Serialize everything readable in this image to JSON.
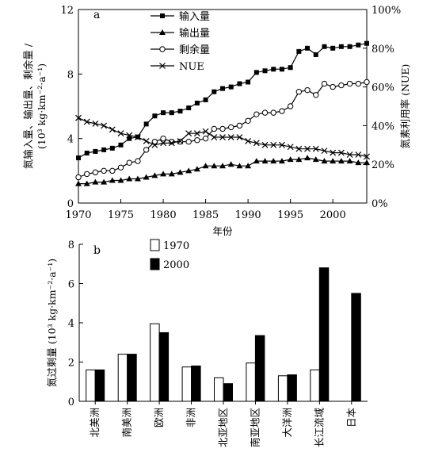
{
  "chart_data": [
    {
      "type": "line",
      "panel_label": "a",
      "xlabel": "年份",
      "ylabel_left_line1": "氮输入量、输出量、剩余量 /",
      "ylabel_left_line2": "(10³ kg·km⁻²·a⁻¹)",
      "ylabel_right": "氮素利用率 (NUE)",
      "xlim": [
        1970,
        2004
      ],
      "ylim_left": [
        0,
        12
      ],
      "ylim_right": [
        0,
        100
      ],
      "x_ticks": [
        1970,
        1975,
        1980,
        1985,
        1990,
        1995,
        2000
      ],
      "y_ticks_left": [
        "0",
        "4",
        "8",
        "12"
      ],
      "y_ticks_right": [
        "0%",
        "20%",
        "40%",
        "60%",
        "80%",
        "100%"
      ],
      "x": [
        1970,
        1971,
        1972,
        1973,
        1974,
        1975,
        1976,
        1977,
        1978,
        1979,
        1980,
        1981,
        1982,
        1983,
        1984,
        1985,
        1986,
        1987,
        1988,
        1989,
        1990,
        1991,
        1992,
        1993,
        1994,
        1995,
        1996,
        1997,
        1998,
        1999,
        2000,
        2001,
        2002,
        2003,
        2004
      ],
      "series": [
        {
          "name": "输入量",
          "axis": "left",
          "marker": "square",
          "values": [
            2.8,
            3.1,
            3.2,
            3.3,
            3.4,
            3.6,
            4.0,
            4.1,
            4.9,
            5.4,
            5.6,
            5.6,
            5.7,
            5.9,
            6.2,
            6.4,
            6.9,
            7.1,
            7.2,
            7.4,
            7.5,
            8.1,
            8.2,
            8.3,
            8.3,
            8.4,
            9.4,
            9.6,
            9.2,
            9.7,
            9.6,
            9.7,
            9.7,
            9.8,
            9.9
          ]
        },
        {
          "name": "输出量",
          "axis": "left",
          "marker": "triangle",
          "values": [
            1.2,
            1.2,
            1.3,
            1.3,
            1.4,
            1.4,
            1.5,
            1.5,
            1.6,
            1.7,
            1.8,
            1.8,
            1.9,
            2.0,
            2.1,
            2.3,
            2.3,
            2.3,
            2.4,
            2.3,
            2.3,
            2.6,
            2.6,
            2.6,
            2.6,
            2.7,
            2.7,
            2.8,
            2.7,
            2.6,
            2.6,
            2.6,
            2.6,
            2.5,
            2.5
          ]
        },
        {
          "name": "剩余量",
          "axis": "left",
          "marker": "circle",
          "values": [
            1.6,
            1.8,
            1.9,
            2.0,
            2.0,
            2.2,
            2.5,
            2.6,
            3.3,
            3.8,
            4.0,
            3.8,
            3.8,
            3.8,
            3.9,
            4.0,
            4.6,
            4.6,
            4.7,
            4.8,
            5.1,
            5.5,
            5.6,
            5.6,
            5.7,
            6.0,
            6.9,
            7.0,
            6.7,
            7.4,
            7.2,
            7.3,
            7.4,
            7.4,
            7.5
          ]
        },
        {
          "name": "NUE",
          "axis": "right",
          "marker": "x",
          "values": [
            44,
            42,
            41,
            40,
            38,
            36,
            35,
            34,
            32,
            30,
            31,
            31,
            32,
            36,
            36,
            37,
            34,
            34,
            34,
            34,
            32,
            31,
            30,
            30,
            30,
            29,
            28,
            28,
            28,
            27,
            26,
            26,
            25,
            25,
            24
          ]
        }
      ],
      "legend": "top-center"
    },
    {
      "type": "bar",
      "panel_label": "b",
      "xlabel": "",
      "ylabel": "氮过剩量 (10³ kg·km⁻²·a⁻¹)",
      "ylim": [
        0,
        8
      ],
      "y_ticks": [
        "0",
        "2",
        "4",
        "6",
        "8"
      ],
      "categories": [
        "北美洲",
        "南美洲",
        "欧洲",
        "非洲",
        "北亚地区",
        "南亚地区",
        "大洋洲",
        "长江流域",
        "日本"
      ],
      "series": [
        {
          "name": "1970",
          "fill": "#ffffff",
          "values": [
            1.6,
            2.4,
            3.95,
            1.75,
            1.2,
            1.95,
            1.3,
            1.6,
            null
          ]
        },
        {
          "name": "2000",
          "fill": "#000000",
          "values": [
            1.6,
            2.4,
            3.5,
            1.8,
            0.9,
            3.35,
            1.35,
            6.8,
            5.5
          ]
        }
      ],
      "legend": "top-left"
    }
  ]
}
